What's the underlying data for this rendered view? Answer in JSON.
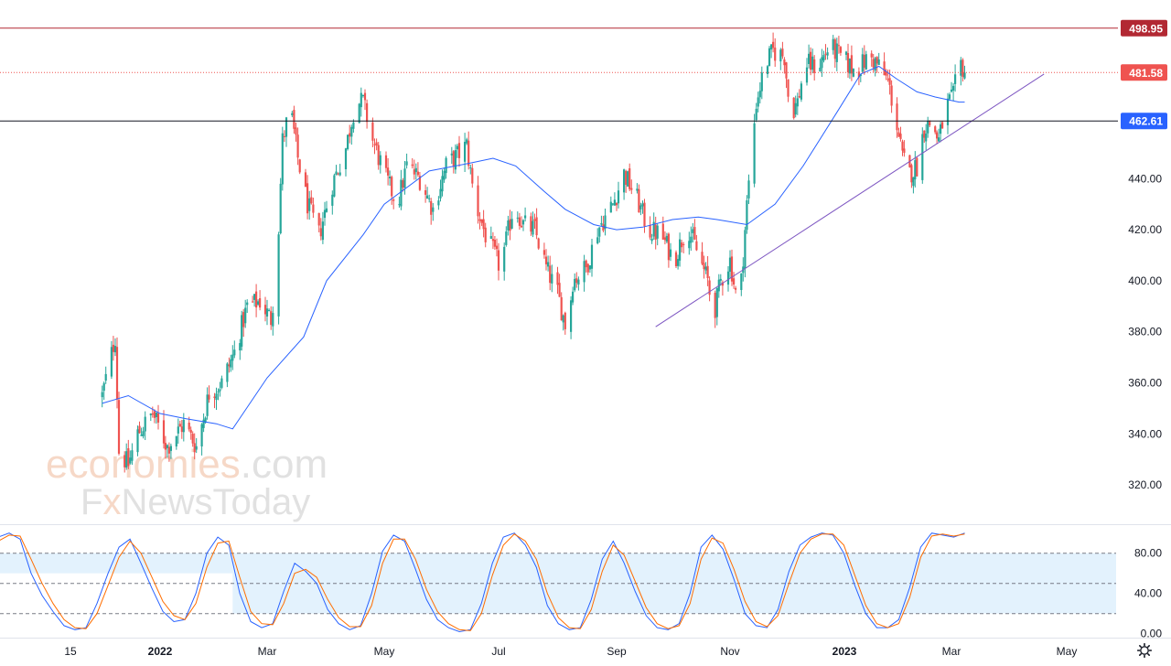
{
  "watermark": {
    "line1_part1": "economies",
    "line1_part2": ".com",
    "line2_part1": "F",
    "line2_part2": "x",
    "line2_part3": "NewsToday"
  },
  "colors": {
    "up": "#26a69a",
    "down": "#ef5350",
    "ma": "#2962ff",
    "trend": "#7e57c2",
    "k": "#2962ff",
    "d": "#ff6d00",
    "res": "#b22833",
    "mid": "#ef5350",
    "sup": "#131722",
    "band": "#e3f2fd"
  },
  "chart_data": [
    {
      "type": "candlestick",
      "ylim": [
        305,
        510
      ],
      "yticks": [
        "320.00",
        "340.00",
        "360.00",
        "380.00",
        "400.00",
        "420.00",
        "440.00"
      ],
      "ytick_values": [
        320,
        340,
        360,
        380,
        400,
        420,
        440
      ],
      "x_labels": [
        "15",
        "2022",
        "Mar",
        "May",
        "Jul",
        "Sep",
        "Nov",
        "2023",
        "Mar",
        "May"
      ],
      "x_labels_bold": [
        "2022",
        "2023"
      ],
      "horizontal_levels": [
        {
          "value": 498.95,
          "label": "498.95",
          "style": "solid",
          "color": "#b22833"
        },
        {
          "value": 481.58,
          "label": "481.58",
          "style": "dotted",
          "color": "#ef5350"
        },
        {
          "value": 462.61,
          "label": "462.61",
          "style": "solid",
          "color": "#131722",
          "label_bg": "#2962ff"
        }
      ],
      "trendline": [
        {
          "t": "2022-09-22",
          "v": 382
        },
        {
          "t": "2023-04-19",
          "v": 481
        }
      ],
      "close_path": [
        [
          "2021-12-01",
          355
        ],
        [
          "2021-12-08",
          378
        ],
        [
          "2021-12-10",
          333
        ],
        [
          "2021-12-15",
          328
        ],
        [
          "2021-12-20",
          340
        ],
        [
          "2021-12-28",
          348
        ],
        [
          "2022-01-05",
          335
        ],
        [
          "2022-01-14",
          344
        ],
        [
          "2022-01-21",
          335
        ],
        [
          "2022-01-28",
          356
        ],
        [
          "2022-02-04",
          360
        ],
        [
          "2022-02-11",
          372
        ],
        [
          "2022-02-18",
          390
        ],
        [
          "2022-02-25",
          392
        ],
        [
          "2022-03-03",
          385
        ],
        [
          "2022-03-06",
          404
        ],
        [
          "2022-03-09",
          455
        ],
        [
          "2022-03-13",
          468
        ],
        [
          "2022-03-17",
          448
        ],
        [
          "2022-03-22",
          430
        ],
        [
          "2022-03-28",
          418
        ],
        [
          "2022-04-04",
          438
        ],
        [
          "2022-04-11",
          452
        ],
        [
          "2022-04-16",
          470
        ],
        [
          "2022-04-20",
          470
        ],
        [
          "2022-04-25",
          455
        ],
        [
          "2022-05-02",
          440
        ],
        [
          "2022-05-08",
          430
        ],
        [
          "2022-05-13",
          445
        ],
        [
          "2022-05-20",
          440
        ],
        [
          "2022-05-27",
          428
        ],
        [
          "2022-06-03",
          445
        ],
        [
          "2022-06-10",
          450
        ],
        [
          "2022-06-14",
          453
        ],
        [
          "2022-06-18",
          432
        ],
        [
          "2022-06-24",
          418
        ],
        [
          "2022-07-02",
          405
        ],
        [
          "2022-07-09",
          430
        ],
        [
          "2022-07-14",
          422
        ],
        [
          "2022-07-20",
          420
        ],
        [
          "2022-07-26",
          405
        ],
        [
          "2022-08-01",
          395
        ],
        [
          "2022-08-06",
          380
        ],
        [
          "2022-08-09",
          400
        ],
        [
          "2022-08-16",
          405
        ],
        [
          "2022-08-22",
          420
        ],
        [
          "2022-08-30",
          430
        ],
        [
          "2022-09-05",
          442
        ],
        [
          "2022-09-12",
          432
        ],
        [
          "2022-09-18",
          420
        ],
        [
          "2022-09-25",
          418
        ],
        [
          "2022-10-02",
          408
        ],
        [
          "2022-10-09",
          422
        ],
        [
          "2022-10-14",
          412
        ],
        [
          "2022-10-20",
          400
        ],
        [
          "2022-10-23",
          386
        ],
        [
          "2022-10-27",
          400
        ],
        [
          "2022-11-01",
          408
        ],
        [
          "2022-11-04",
          395
        ],
        [
          "2022-11-07",
          400
        ],
        [
          "2022-11-10",
          430
        ],
        [
          "2022-11-15",
          470
        ],
        [
          "2022-11-20",
          485
        ],
        [
          "2022-11-24",
          490
        ],
        [
          "2022-11-30",
          488
        ],
        [
          "2022-12-03",
          465
        ],
        [
          "2022-12-07",
          470
        ],
        [
          "2022-12-11",
          485
        ],
        [
          "2022-12-18",
          484
        ],
        [
          "2022-12-24",
          492
        ],
        [
          "2022-12-31",
          487
        ],
        [
          "2023-01-07",
          482
        ],
        [
          "2023-01-15",
          488
        ],
        [
          "2023-01-20",
          484
        ],
        [
          "2023-01-25",
          478
        ],
        [
          "2023-01-29",
          465
        ],
        [
          "2023-02-02",
          448
        ],
        [
          "2023-02-06",
          442
        ],
        [
          "2023-02-10",
          445
        ],
        [
          "2023-02-14",
          460
        ],
        [
          "2023-02-18",
          462
        ],
        [
          "2023-02-22",
          455
        ],
        [
          "2023-02-26",
          468
        ],
        [
          "2023-03-02",
          472
        ],
        [
          "2023-03-05",
          486
        ],
        [
          "2023-03-08",
          482
        ]
      ],
      "ma_path": [
        [
          "2021-12-01",
          352
        ],
        [
          "2021-12-15",
          355
        ],
        [
          "2022-01-01",
          348
        ],
        [
          "2022-01-15",
          346
        ],
        [
          "2022-02-01",
          344
        ],
        [
          "2022-02-10",
          342
        ],
        [
          "2022-03-01",
          362
        ],
        [
          "2022-03-20",
          378
        ],
        [
          "2022-04-01",
          400
        ],
        [
          "2022-04-20",
          418
        ],
        [
          "2022-05-01",
          430
        ],
        [
          "2022-05-25",
          443
        ],
        [
          "2022-06-15",
          446
        ],
        [
          "2022-06-28",
          448
        ],
        [
          "2022-07-10",
          445
        ],
        [
          "2022-07-25",
          435
        ],
        [
          "2022-08-05",
          428
        ],
        [
          "2022-08-20",
          422
        ],
        [
          "2022-09-01",
          420
        ],
        [
          "2022-09-15",
          421
        ],
        [
          "2022-10-01",
          424
        ],
        [
          "2022-10-15",
          425
        ],
        [
          "2022-10-25",
          424
        ],
        [
          "2022-11-10",
          422
        ],
        [
          "2022-11-25",
          430
        ],
        [
          "2022-12-10",
          445
        ],
        [
          "2022-12-28",
          466
        ],
        [
          "2023-01-10",
          481
        ],
        [
          "2023-01-20",
          484
        ],
        [
          "2023-01-30",
          479
        ],
        [
          "2023-02-10",
          474
        ],
        [
          "2023-02-20",
          472
        ],
        [
          "2023-03-05",
          470
        ],
        [
          "2023-03-08",
          470
        ]
      ]
    },
    {
      "type": "line",
      "title": "",
      "ylim": [
        -3,
        107
      ],
      "yticks": [
        "0.00",
        "40.00",
        "80.00"
      ],
      "ytick_values": [
        0,
        40,
        80
      ],
      "levels": [
        80,
        50,
        20
      ],
      "series": [
        {
          "key": "k",
          "values": [
            96,
            100,
            94,
            60,
            38,
            22,
            8,
            4,
            6,
            30,
            60,
            86,
            94,
            70,
            45,
            22,
            12,
            14,
            40,
            80,
            96,
            88,
            40,
            12,
            6,
            10,
            42,
            70,
            62,
            50,
            24,
            10,
            4,
            8,
            40,
            82,
            98,
            92,
            64,
            34,
            14,
            6,
            2,
            4,
            30,
            70,
            96,
            100,
            88,
            66,
            28,
            10,
            4,
            6,
            34,
            74,
            92,
            70,
            42,
            18,
            6,
            4,
            10,
            40,
            86,
            98,
            84,
            54,
            20,
            8,
            6,
            24,
            62,
            88,
            96,
            100,
            98,
            80,
            48,
            20,
            6,
            6,
            14,
            46,
            86,
            100,
            98,
            96,
            100
          ]
        },
        {
          "key": "d",
          "values": [
            92,
            98,
            97,
            74,
            50,
            30,
            14,
            6,
            5,
            20,
            48,
            76,
            92,
            80,
            56,
            32,
            18,
            14,
            30,
            66,
            90,
            92,
            56,
            22,
            10,
            9,
            30,
            60,
            64,
            56,
            34,
            16,
            7,
            7,
            28,
            70,
            94,
            94,
            74,
            44,
            22,
            10,
            4,
            3,
            20,
            58,
            88,
            99,
            92,
            74,
            40,
            16,
            6,
            5,
            24,
            62,
            88,
            78,
            52,
            26,
            10,
            5,
            8,
            30,
            74,
            95,
            90,
            64,
            32,
            12,
            7,
            18,
            50,
            80,
            94,
            99,
            99,
            88,
            58,
            28,
            10,
            6,
            10,
            36,
            76,
            97,
            99,
            97,
            99
          ]
        }
      ]
    }
  ]
}
